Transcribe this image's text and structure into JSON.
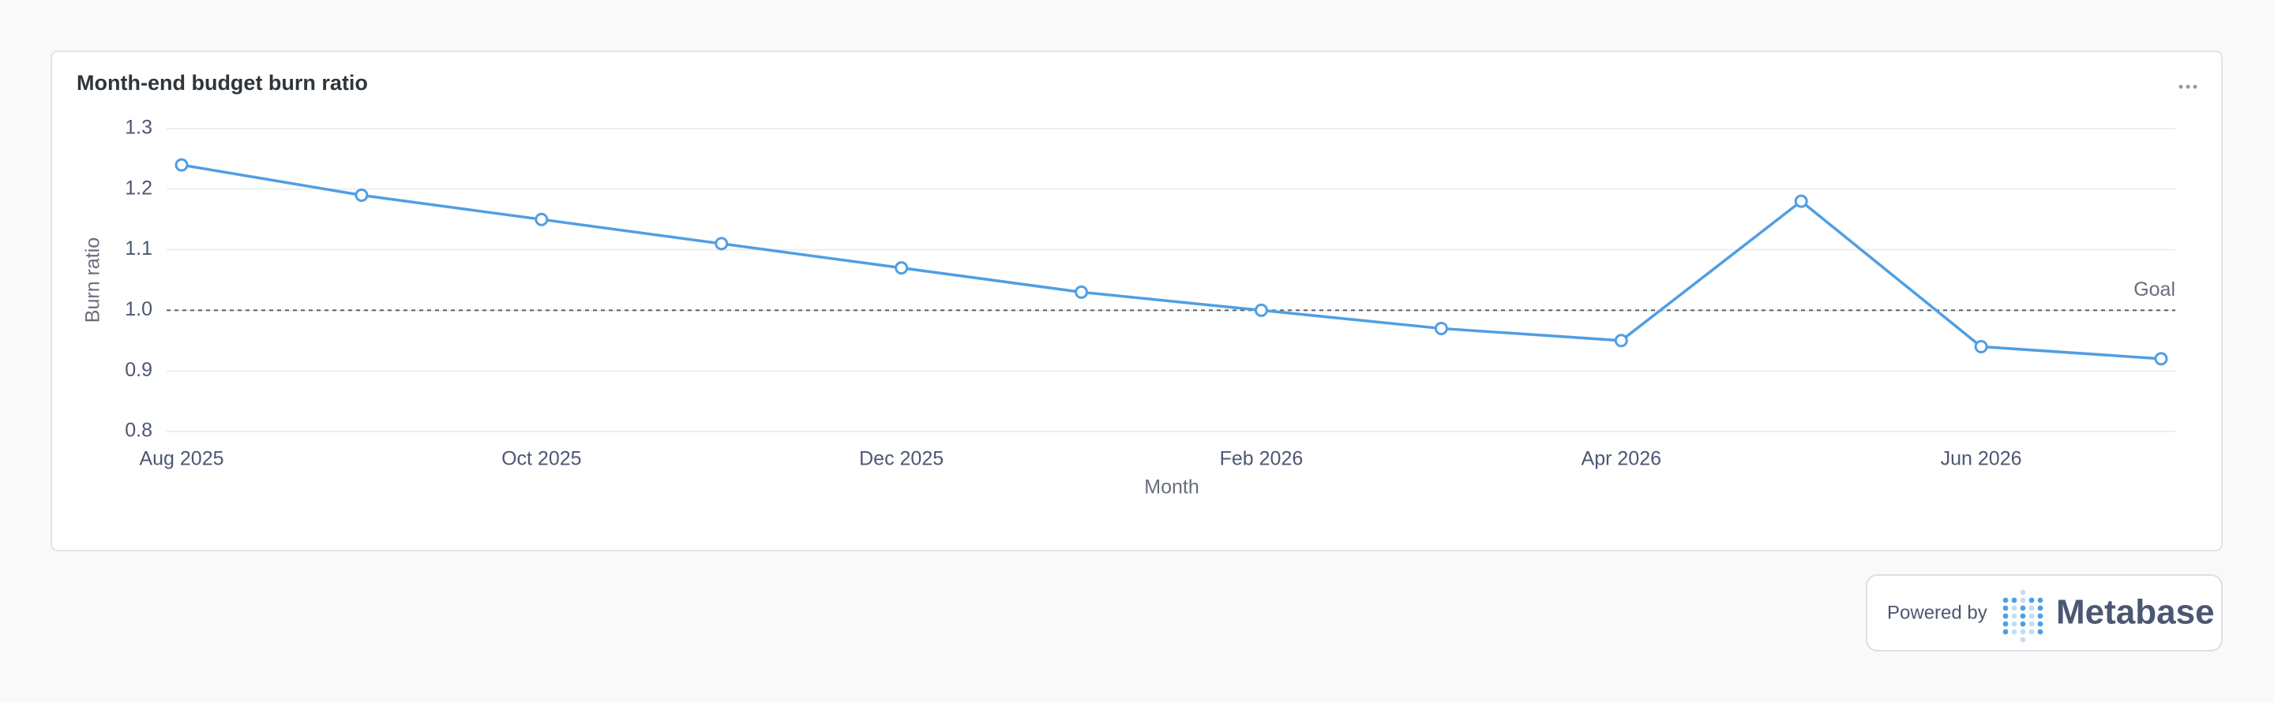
{
  "chart_data": {
    "type": "line",
    "title": "Month-end budget burn ratio",
    "x_label": "Month",
    "y_label": "Burn ratio",
    "categories": [
      "Aug 2025",
      null,
      "Oct 2025",
      null,
      "Dec 2025",
      null,
      "Feb 2026",
      null,
      "Apr 2026",
      null,
      "Jun 2026",
      null
    ],
    "series": [
      {
        "name": "Burn ratio",
        "color": "#509ee3",
        "values": [
          1.24,
          1.19,
          1.15,
          1.11,
          1.07,
          1.03,
          1.0,
          0.97,
          0.95,
          1.18,
          0.94,
          0.92
        ]
      }
    ],
    "ylim": [
      0.8,
      1.3
    ],
    "yticks": [
      0.8,
      0.9,
      {
        "value": 1,
        "label": "1.0"
      },
      1.1,
      1.2,
      1.3
    ],
    "grid": true,
    "goal": {
      "value": 1,
      "label": "Goal"
    }
  },
  "footer": {
    "powered_by": "Powered by",
    "brand": "Metabase"
  }
}
